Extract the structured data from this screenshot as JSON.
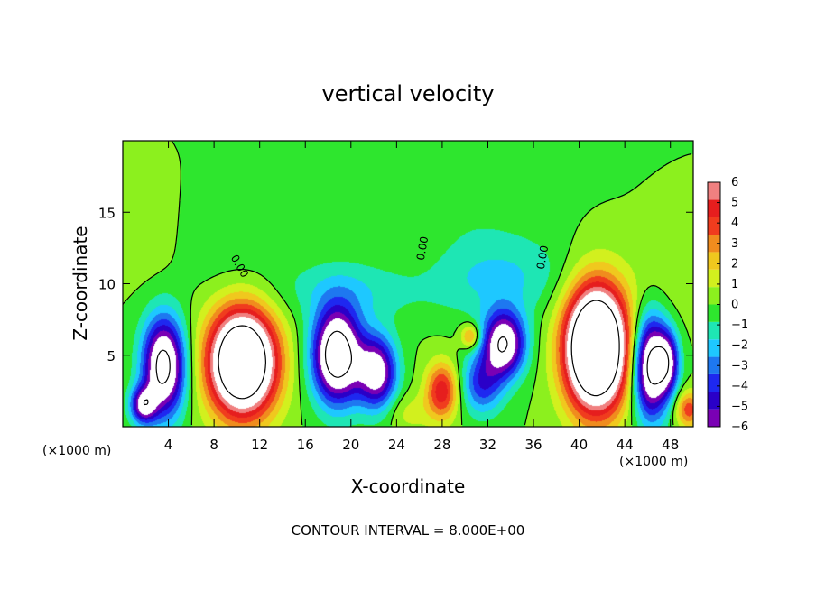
{
  "chart_data": {
    "type": "heatmap",
    "title": "vertical velocity",
    "xlabel": "X-coordinate",
    "ylabel": "Z-coordinate",
    "x_unit": "(×1000 m)",
    "z_unit": "(×1000 m)",
    "xlim": [
      0,
      50
    ],
    "ylim": [
      0,
      20
    ],
    "x_ticks": [
      4,
      8,
      12,
      16,
      20,
      24,
      28,
      32,
      36,
      40,
      44,
      48
    ],
    "y_ticks": [
      5,
      10,
      15
    ],
    "grid": false,
    "colorbar": {
      "position": "right",
      "levels": [
        -6,
        -5,
        -4,
        -3,
        -2,
        -1,
        0,
        1,
        2,
        3,
        4,
        5,
        6
      ],
      "labels": [
        "6",
        "5",
        "4",
        "3",
        "2",
        "1",
        "0",
        "−1",
        "−2",
        "−3",
        "−4",
        "−5",
        "−6"
      ],
      "colors": [
        "#7a00b4",
        "#2a00c8",
        "#1e28f0",
        "#1e78f0",
        "#1ec8ff",
        "#1ee6b4",
        "#2ee62e",
        "#8cf01e",
        "#d2f01e",
        "#f0c81e",
        "#f08c1e",
        "#f03c1e",
        "#e61e1e",
        "#f08080"
      ],
      "out_of_range_color": "#ffffff"
    },
    "contour_interval": "8.000E+00",
    "contour_labels": [
      "0.00",
      "0.00",
      "0.00"
    ],
    "features": [
      {
        "kind": "updraft",
        "x": 10.5,
        "z": 4.5,
        "sx": 2.1,
        "sz": 2.6,
        "peak": 13
      },
      {
        "kind": "updraft",
        "x": 41.5,
        "z": 5.5,
        "sx": 1.9,
        "sz": 3.0,
        "peak": 15
      },
      {
        "kind": "updraft",
        "x": 28,
        "z": 2.5,
        "sx": 1.0,
        "sz": 1.4,
        "peak": 5
      },
      {
        "kind": "updraft",
        "x": 30.5,
        "z": 6.3,
        "sx": 0.6,
        "sz": 0.6,
        "peak": 3.5
      },
      {
        "kind": "updraft",
        "x": 49.6,
        "z": 1.2,
        "sx": 0.8,
        "sz": 0.9,
        "peak": 4
      },
      {
        "kind": "updraft",
        "x": 25,
        "z": 1,
        "sx": 1.5,
        "sz": 1.0,
        "peak": 1.2
      },
      {
        "kind": "downdraft",
        "x": 3.6,
        "z": 4.2,
        "sx": 1.3,
        "sz": 2.4,
        "peak": -9
      },
      {
        "kind": "downdraft",
        "x": 1.8,
        "z": 1.5,
        "sx": 0.8,
        "sz": 0.9,
        "peak": -6
      },
      {
        "kind": "downdraft",
        "x": 18.8,
        "z": 5.0,
        "sx": 1.5,
        "sz": 2.3,
        "peak": -10
      },
      {
        "kind": "downdraft",
        "x": 22.3,
        "z": 3.8,
        "sx": 1.2,
        "sz": 1.8,
        "peak": -7
      },
      {
        "kind": "downdraft",
        "x": 33.4,
        "z": 5.8,
        "sx": 1.3,
        "sz": 1.6,
        "peak": -8
      },
      {
        "kind": "downdraft",
        "x": 31.5,
        "z": 3.0,
        "sx": 1.3,
        "sz": 1.5,
        "peak": -4
      },
      {
        "kind": "downdraft",
        "x": 46.3,
        "z": 4.2,
        "sx": 1.1,
        "sz": 2.5,
        "peak": -9
      },
      {
        "kind": "downdraft",
        "x": 47.8,
        "z": 4.5,
        "sx": 0.7,
        "sz": 1.5,
        "peak": -5
      },
      {
        "kind": "downdraft",
        "x": 20.5,
        "z": 9.5,
        "sx": 5.0,
        "sz": 1.5,
        "peak": -1.5
      },
      {
        "kind": "downdraft",
        "x": 33,
        "z": 10.5,
        "sx": 4.5,
        "sz": 2.0,
        "peak": -1.8
      },
      {
        "kind": "downdraft",
        "x": 8,
        "z": 12,
        "sx": 5.0,
        "sz": 2.0,
        "peak": -0.6
      },
      {
        "kind": "downdraft",
        "x": 28,
        "z": 16,
        "sx": 6.0,
        "sz": 3.0,
        "peak": -0.7
      },
      {
        "kind": "updraft",
        "x": 2.5,
        "z": 12.2,
        "sx": 2.5,
        "sz": 2.0,
        "peak": 0.7
      },
      {
        "kind": "updraft",
        "x": 25.5,
        "z": 12,
        "sx": 2.5,
        "sz": 3.0,
        "peak": 0.5
      },
      {
        "kind": "updraft",
        "x": 47.5,
        "z": 10,
        "sx": 2.5,
        "sz": 2.5,
        "peak": 0.6
      }
    ]
  }
}
